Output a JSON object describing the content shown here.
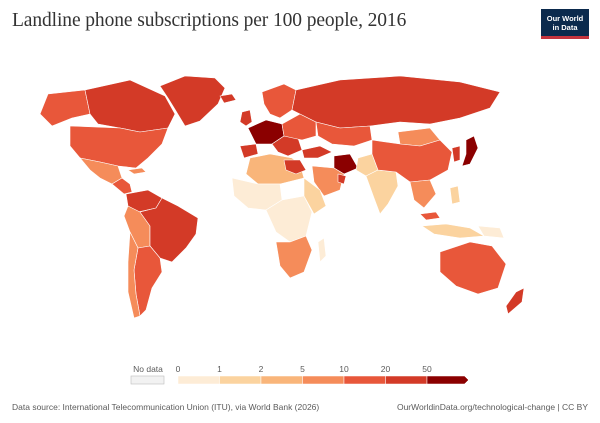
{
  "title": "Landline phone subscriptions per 100 people, 2016",
  "logo": {
    "line1": "Our World",
    "line2": "in Data"
  },
  "legend": {
    "no_data_label": "No data",
    "no_data_color": "#f2f2f2",
    "ticks": [
      "0",
      "1",
      "2",
      "5",
      "10",
      "20",
      "50"
    ],
    "colors": [
      "#fdecd6",
      "#fbd39f",
      "#f9b57a",
      "#f58c5a",
      "#e8573a",
      "#d33a27",
      "#8b0000"
    ]
  },
  "footer": {
    "source": "Data source: International Telecommunication Union (ITU), via World Bank (2026)",
    "link": "OurWorldinData.org/technological-change | CC BY"
  },
  "map_colors": {
    "ocean": "#ffffff",
    "border": "#ffffff",
    "level_0": "#fdecd6",
    "level_1": "#fbd39f",
    "level_2": "#f9b57a",
    "level_3": "#f58c5a",
    "level_4": "#e8573a",
    "level_5": "#d33a27",
    "level_6": "#8b0000"
  }
}
